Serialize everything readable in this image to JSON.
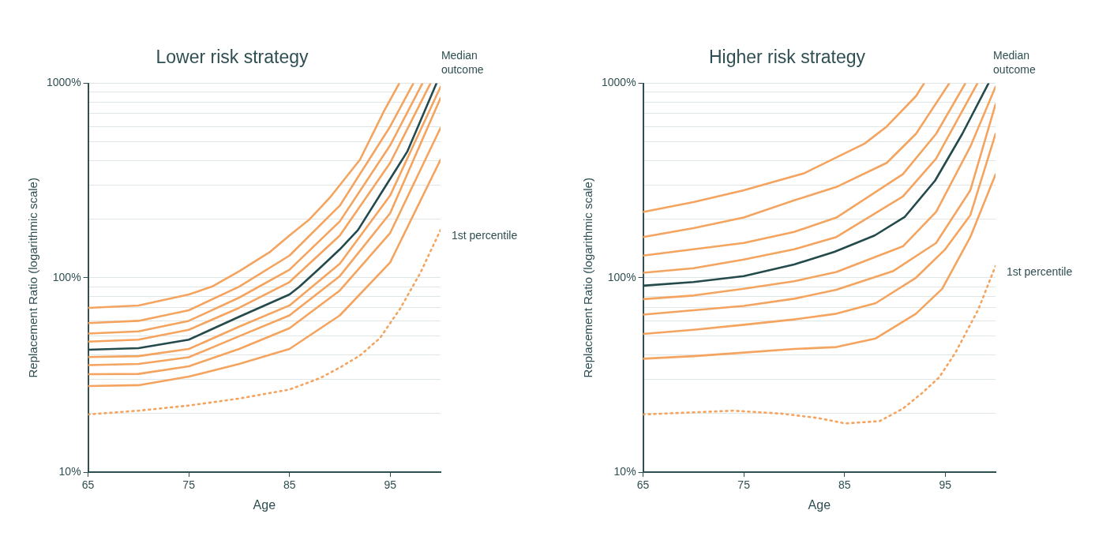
{
  "chart_data": [
    {
      "type": "line",
      "title": "Lower risk strategy",
      "xlabel": "Age",
      "ylabel": "Replacement Ratio (logarithmic scale)",
      "log": "y",
      "grid": "y",
      "xlim": [
        65,
        100
      ],
      "xticks": [
        65,
        75,
        85,
        95
      ],
      "ylim": [
        10,
        1000
      ],
      "yticks": [
        {
          "value": 10,
          "label": "10%"
        },
        {
          "value": 20,
          "label": null
        },
        {
          "value": 30,
          "label": null
        },
        {
          "value": 40,
          "label": null
        },
        {
          "value": 50,
          "label": null
        },
        {
          "value": 60,
          "label": null
        },
        {
          "value": 70,
          "label": null
        },
        {
          "value": 80,
          "label": null
        },
        {
          "value": 90,
          "label": null
        },
        {
          "value": 100,
          "label": "100%"
        },
        {
          "value": 200,
          "label": null
        },
        {
          "value": 300,
          "label": null
        },
        {
          "value": 400,
          "label": null
        },
        {
          "value": 500,
          "label": null
        },
        {
          "value": 600,
          "label": null
        },
        {
          "value": 700,
          "label": null
        },
        {
          "value": 800,
          "label": null
        },
        {
          "value": 900,
          "label": null
        },
        {
          "value": 1000,
          "label": "1000%"
        }
      ],
      "series": [
        {
          "color": "#f4a45f",
          "line_style": "solid",
          "x": [
            65,
            70,
            75,
            77.3,
            80,
            83,
            85,
            87,
            89,
            92,
            94.4,
            95.9
          ],
          "values": [
            70,
            72,
            82,
            90,
            108,
            135,
            165,
            200,
            258,
            405,
            722,
            1000
          ]
        },
        {
          "color": "#f4a45f",
          "line_style": "solid",
          "x": [
            65,
            70,
            75,
            80,
            85,
            90,
            95,
            97.3
          ],
          "values": [
            58.4,
            60,
            68,
            90,
            130,
            235,
            600,
            1000
          ]
        },
        {
          "color": "#f4a45f",
          "line_style": "solid",
          "x": [
            65,
            70,
            75,
            80,
            85,
            90,
            95,
            98.2
          ],
          "values": [
            51.6,
            53,
            60,
            79,
            110,
            195,
            480,
            1000
          ]
        },
        {
          "color": "#f4a45f",
          "line_style": "solid",
          "x": [
            65,
            70,
            75,
            80,
            85,
            90,
            95,
            99
          ],
          "values": [
            46.9,
            48,
            54,
            70,
            95,
            165,
            390,
            1000
          ]
        },
        {
          "color": "#f4a45f",
          "line_style": "solid",
          "x": [
            65,
            70,
            75,
            80,
            85,
            90,
            95,
            100
          ],
          "values": [
            39.1,
            39.5,
            43,
            56,
            72,
            118,
            265,
            960
          ]
        },
        {
          "color": "#f4a45f",
          "line_style": "solid",
          "x": [
            65,
            70,
            75,
            80,
            85,
            90,
            95,
            100
          ],
          "values": [
            35.5,
            36,
            39,
            50,
            64,
            102,
            215,
            840
          ]
        },
        {
          "color": "#f4a45f",
          "line_style": "solid",
          "x": [
            65,
            70,
            75,
            80,
            85,
            90,
            95,
            100
          ],
          "values": [
            31.9,
            32,
            35,
            43,
            55,
            86,
            170,
            590
          ]
        },
        {
          "color": "#f4a45f",
          "line_style": "solid",
          "x": [
            65,
            70,
            75,
            80,
            85,
            90,
            95,
            100
          ],
          "values": [
            27.7,
            28,
            31,
            36,
            43,
            64,
            120,
            405
          ]
        },
        {
          "name": "Median outcome",
          "color": "#244a4c",
          "line_style": "solid",
          "x": [
            65,
            70,
            75,
            80,
            85,
            86,
            88,
            90,
            91.8,
            94,
            96,
            96.7,
            98,
            99.6
          ],
          "values": [
            42.6,
            43.4,
            48,
            63,
            82,
            90,
            112,
            140,
            176,
            267,
            390,
            446,
            640,
            1000
          ]
        },
        {
          "name": "1st percentile",
          "color": "#f4a45f",
          "line_style": "dotted",
          "x": [
            65,
            70,
            75,
            80,
            85,
            88,
            90,
            92,
            94,
            96,
            98,
            100
          ],
          "values": [
            19.8,
            20.7,
            22,
            23.9,
            26.6,
            30.4,
            34.5,
            39.8,
            49,
            69.5,
            106,
            176
          ]
        }
      ]
    },
    {
      "type": "line",
      "title": "Higher risk strategy",
      "xlabel": "Age",
      "ylabel": "Replacement Ratio (logarithmic scale)",
      "log": "y",
      "grid": "y",
      "xlim": [
        65,
        100
      ],
      "xticks": [
        65,
        75,
        85,
        95
      ],
      "ylim": [
        10,
        1000
      ],
      "yticks": [
        {
          "value": 10,
          "label": "10%"
        },
        {
          "value": 20,
          "label": null
        },
        {
          "value": 30,
          "label": null
        },
        {
          "value": 40,
          "label": null
        },
        {
          "value": 50,
          "label": null
        },
        {
          "value": 60,
          "label": null
        },
        {
          "value": 70,
          "label": null
        },
        {
          "value": 80,
          "label": null
        },
        {
          "value": 90,
          "label": null
        },
        {
          "value": 100,
          "label": "100%"
        },
        {
          "value": 200,
          "label": null
        },
        {
          "value": 300,
          "label": null
        },
        {
          "value": 400,
          "label": null
        },
        {
          "value": 500,
          "label": null
        },
        {
          "value": 600,
          "label": null
        },
        {
          "value": 700,
          "label": null
        },
        {
          "value": 800,
          "label": null
        },
        {
          "value": 900,
          "label": null
        },
        {
          "value": 1000,
          "label": "1000%"
        }
      ],
      "series": [
        {
          "color": "#f4a45f",
          "line_style": "solid",
          "x": [
            65,
            70,
            75,
            81,
            87,
            89.2,
            92.1,
            92.9
          ],
          "values": [
            218,
            245,
            282,
            345,
            490,
            600,
            860,
            1000
          ]
        },
        {
          "color": "#f4a45f",
          "line_style": "solid",
          "x": [
            65,
            70,
            75,
            80,
            84.2,
            89.2,
            92.1,
            95.4
          ],
          "values": [
            162,
            180,
            204,
            250,
            293,
            390,
            550,
            1000
          ]
        },
        {
          "color": "#f4a45f",
          "line_style": "solid",
          "x": [
            65,
            70,
            75,
            80,
            84.2,
            90.8,
            94.1,
            97
          ],
          "values": [
            130,
            140,
            151,
            172,
            204,
            341,
            550,
            1000
          ]
        },
        {
          "color": "#f4a45f",
          "line_style": "solid",
          "x": [
            65,
            70,
            75,
            80,
            84.2,
            90.8,
            94.1,
            98.2
          ],
          "values": [
            106,
            112,
            124,
            140,
            162,
            262,
            410,
            1000
          ]
        },
        {
          "color": "#f4a45f",
          "line_style": "solid",
          "x": [
            65,
            70,
            75,
            80,
            84.2,
            90.8,
            94.1,
            97.5,
            100
          ],
          "values": [
            77.6,
            81,
            87.7,
            96,
            107,
            145,
            218,
            473,
            960
          ]
        },
        {
          "color": "#f4a45f",
          "line_style": "solid",
          "x": [
            65,
            70,
            75,
            80,
            84.2,
            89.8,
            94.1,
            97.5,
            100
          ],
          "values": [
            64.6,
            68,
            71.6,
            78,
            86.7,
            108,
            151,
            282,
            780
          ]
        },
        {
          "color": "#f4a45f",
          "line_style": "solid",
          "x": [
            65,
            70,
            75,
            80,
            84.2,
            88.1,
            92.1,
            95,
            97.5,
            100
          ],
          "values": [
            51.4,
            54,
            57.3,
            61,
            65.3,
            74,
            100,
            140,
            210,
            550
          ]
        },
        {
          "color": "#f4a45f",
          "line_style": "solid",
          "x": [
            65,
            70,
            75,
            80,
            84.2,
            88.1,
            92.1,
            94.7,
            97.5,
            100
          ],
          "values": [
            38.3,
            39.5,
            41.2,
            43,
            44,
            48.7,
            65.3,
            87.7,
            162,
            340
          ]
        },
        {
          "name": "Median outcome",
          "color": "#244a4c",
          "line_style": "solid",
          "x": [
            65,
            70,
            75,
            80,
            84,
            88,
            91,
            94,
            96.7,
            99.3
          ],
          "values": [
            91,
            95,
            102,
            117,
            136,
            165,
            206,
            316,
            550,
            1000
          ]
        },
        {
          "name": "1st percentile",
          "color": "#f4a45f",
          "line_style": "dotted",
          "x": [
            65,
            70,
            74,
            78.7,
            82.3,
            85.1,
            88.5,
            90.8,
            92.7,
            94.4,
            96,
            98.3,
            100
          ],
          "values": [
            19.8,
            20.3,
            20.7,
            20,
            19,
            17.8,
            18.3,
            21.2,
            25.5,
            30.7,
            41,
            68.9,
            115
          ]
        }
      ]
    }
  ]
}
